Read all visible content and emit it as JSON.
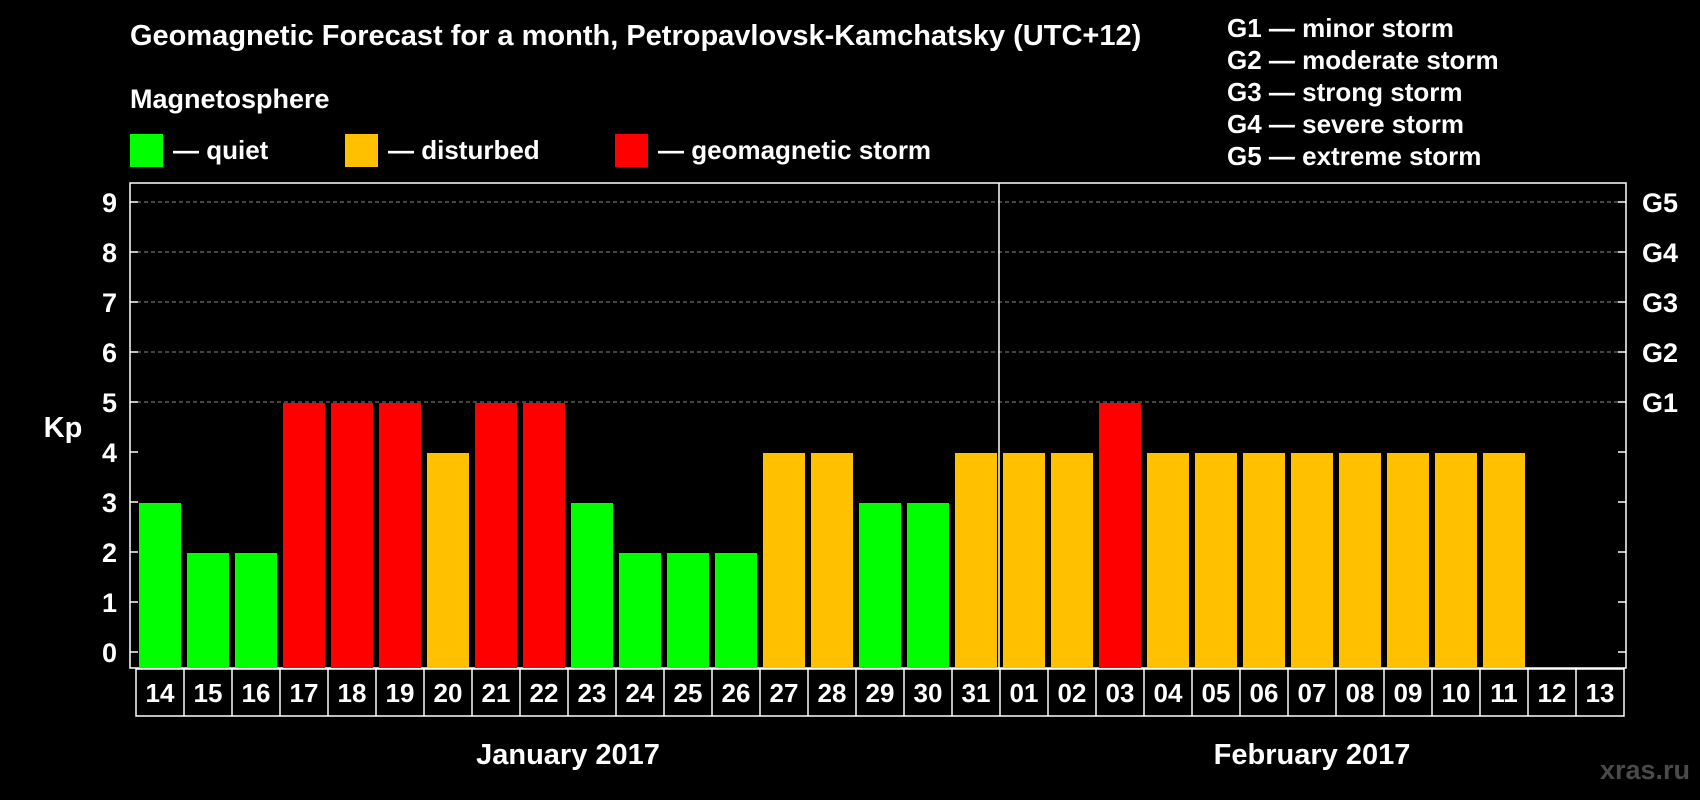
{
  "header": {
    "title": "Geomagnetic Forecast for a month, Petropavlovsk-Kamchatsky (UTC+12)",
    "subtitle": "Magnetosphere"
  },
  "legend": [
    {
      "label": "— quiet",
      "color": "#00ff00"
    },
    {
      "label": "— disturbed",
      "color": "#ffc000"
    },
    {
      "label": "— geomagnetic storm",
      "color": "#ff0000"
    }
  ],
  "storm_scale": [
    "G1 — minor storm",
    "G2 — moderate storm",
    "G3 — strong storm",
    "G4 — severe storm",
    "G5 — extreme storm"
  ],
  "watermark": "xras.ru",
  "colors": {
    "quiet": "#00ff00",
    "disturbed": "#ffc000",
    "storm": "#ff0000",
    "grid": "#888888",
    "axis": "#ffffff"
  },
  "chart_data": {
    "type": "bar",
    "title": "Geomagnetic Forecast for a month, Petropavlovsk-Kamchatsky (UTC+12)",
    "ylabel": "Kp",
    "ylim": [
      0,
      9
    ],
    "yticks": [
      "0",
      "1",
      "2",
      "3",
      "4",
      "5",
      "6",
      "7",
      "8",
      "9"
    ],
    "right_ticks": [
      {
        "kp": 5,
        "label": "G1"
      },
      {
        "kp": 6,
        "label": "G2"
      },
      {
        "kp": 7,
        "label": "G3"
      },
      {
        "kp": 8,
        "label": "G4"
      },
      {
        "kp": 9,
        "label": "G5"
      }
    ],
    "grid": "dashed horizontal at Kp 5-9",
    "categories": [
      "14",
      "15",
      "16",
      "17",
      "18",
      "19",
      "20",
      "21",
      "22",
      "23",
      "24",
      "25",
      "26",
      "27",
      "28",
      "29",
      "30",
      "31",
      "01",
      "02",
      "03",
      "04",
      "05",
      "06",
      "07",
      "08",
      "09",
      "10",
      "11",
      "12",
      "13"
    ],
    "values": [
      3,
      2,
      2,
      5,
      5,
      5,
      4,
      5,
      5,
      3,
      2,
      2,
      2,
      4,
      4,
      3,
      3,
      4,
      4,
      4,
      5,
      4,
      4,
      4,
      4,
      4,
      4,
      4,
      4,
      null,
      null
    ],
    "status": [
      "quiet",
      "quiet",
      "quiet",
      "storm",
      "storm",
      "storm",
      "disturbed",
      "storm",
      "storm",
      "quiet",
      "quiet",
      "quiet",
      "quiet",
      "disturbed",
      "disturbed",
      "quiet",
      "quiet",
      "disturbed",
      "disturbed",
      "disturbed",
      "storm",
      "disturbed",
      "disturbed",
      "disturbed",
      "disturbed",
      "disturbed",
      "disturbed",
      "disturbed",
      "disturbed",
      null,
      null
    ],
    "months": [
      {
        "label": "January 2017",
        "first_index": 0,
        "last_index": 17
      },
      {
        "label": "February 2017",
        "first_index": 18,
        "last_index": 30
      }
    ],
    "month_divider_after_index": 17
  }
}
